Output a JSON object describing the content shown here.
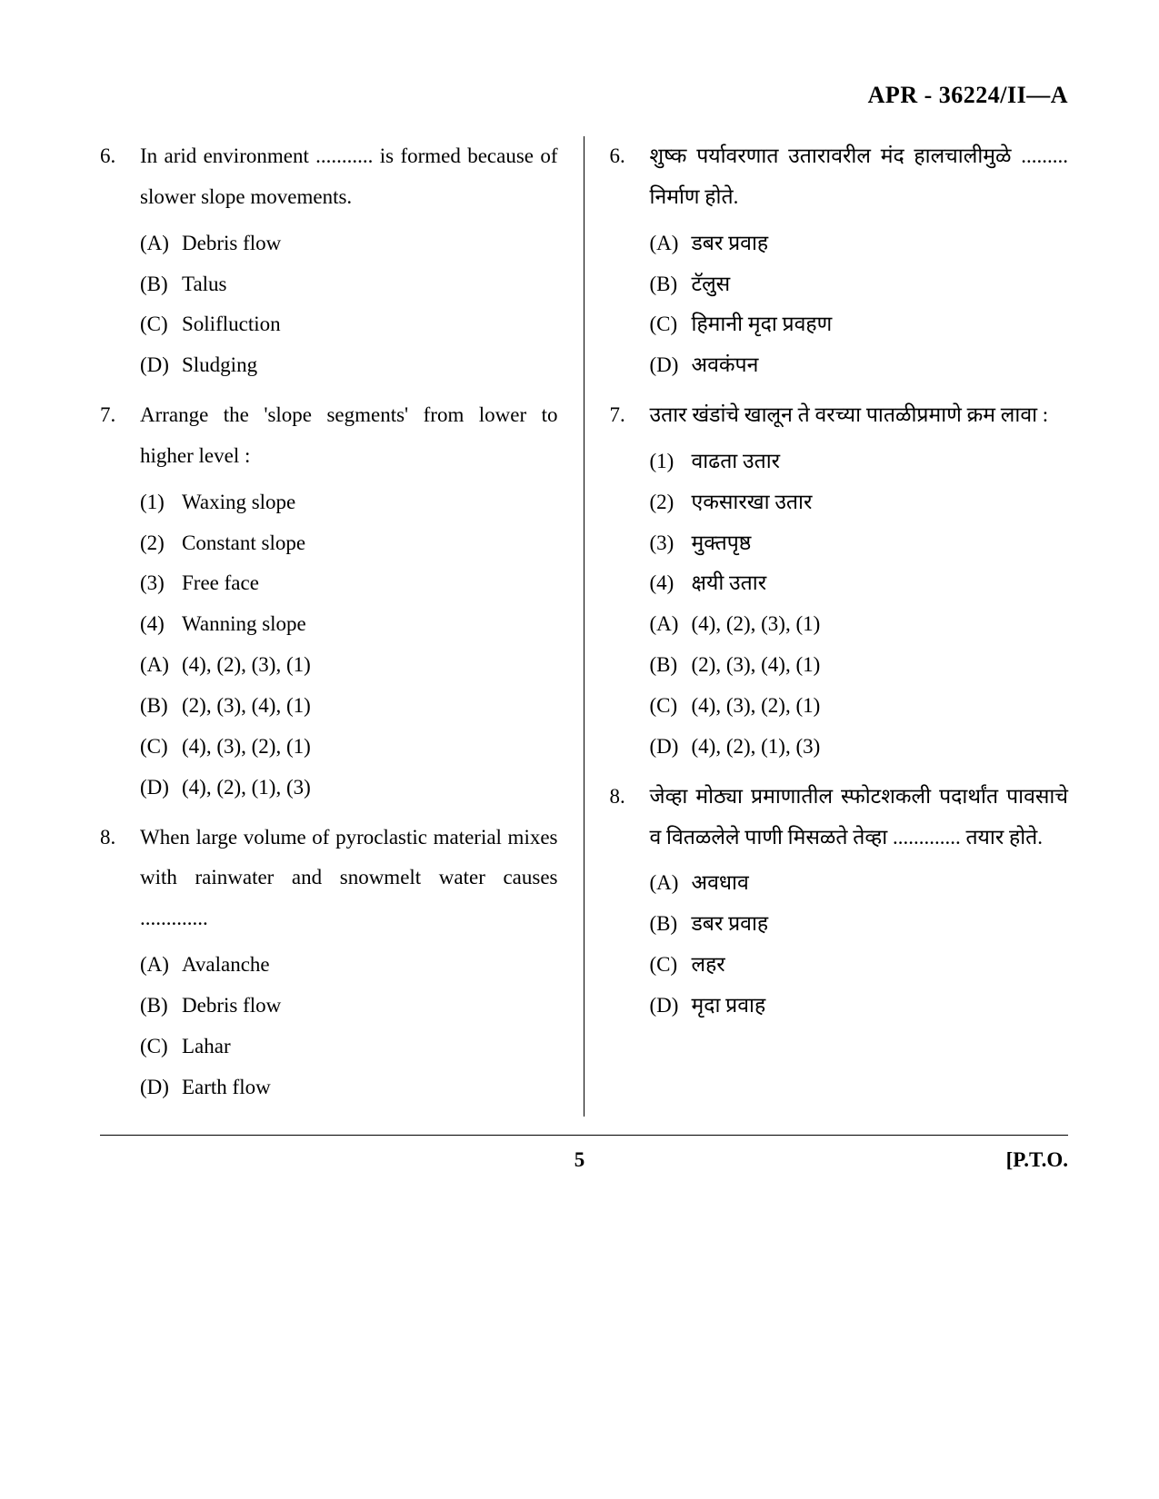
{
  "header": "APR - 36224/II—A",
  "footer": {
    "page": "5",
    "pto": "[P.T.O."
  },
  "left": {
    "lang": "en",
    "questions": [
      {
        "num": "6.",
        "text": "In arid environment ........... is formed because of slower slope movements.",
        "options": [
          {
            "label": "(A)",
            "text": "Debris flow"
          },
          {
            "label": "(B)",
            "text": "Talus"
          },
          {
            "label": "(C)",
            "text": "Solifluction"
          },
          {
            "label": "(D)",
            "text": "Sludging"
          }
        ]
      },
      {
        "num": "7.",
        "text": "Arrange the 'slope segments' from lower to higher level :",
        "items": [
          {
            "label": "(1)",
            "text": "Waxing slope"
          },
          {
            "label": "(2)",
            "text": "Constant slope"
          },
          {
            "label": "(3)",
            "text": "Free face"
          },
          {
            "label": "(4)",
            "text": "Wanning slope"
          }
        ],
        "options": [
          {
            "label": "(A)",
            "text": "(4), (2), (3), (1)"
          },
          {
            "label": "(B)",
            "text": "(2), (3), (4), (1)"
          },
          {
            "label": "(C)",
            "text": "(4), (3), (2), (1)"
          },
          {
            "label": "(D)",
            "text": "(4), (2), (1), (3)"
          }
        ]
      },
      {
        "num": "8.",
        "text": "When large volume of pyroclastic material mixes with rainwater and snowmelt water causes .............",
        "options": [
          {
            "label": "(A)",
            "text": "Avalanche"
          },
          {
            "label": "(B)",
            "text": "Debris flow"
          },
          {
            "label": "(C)",
            "text": "Lahar"
          },
          {
            "label": "(D)",
            "text": "Earth flow"
          }
        ]
      }
    ]
  },
  "right": {
    "lang": "mr",
    "questions": [
      {
        "num": "6.",
        "text": "शुष्क पर्यावरणात उतारावरील मंद हालचालीमुळे ......... निर्माण होते.",
        "options": [
          {
            "label": "(A)",
            "text": "डबर प्रवाह"
          },
          {
            "label": "(B)",
            "text": "टॅलुस"
          },
          {
            "label": "(C)",
            "text": "हिमानी मृदा प्रवहण"
          },
          {
            "label": "(D)",
            "text": "अवकंपन"
          }
        ]
      },
      {
        "num": "7.",
        "text": "उतार खंडांचे खालून ते वरच्या पातळीप्रमाणे क्रम लावा :",
        "items": [
          {
            "label": "(1)",
            "text": "वाढता उतार"
          },
          {
            "label": "(2)",
            "text": "एकसारखा उतार"
          },
          {
            "label": "(3)",
            "text": "मुक्तपृष्ठ"
          },
          {
            "label": "(4)",
            "text": "क्षयी उतार"
          }
        ],
        "options": [
          {
            "label": "(A)",
            "text": "(4), (2), (3), (1)"
          },
          {
            "label": "(B)",
            "text": "(2), (3), (4), (1)"
          },
          {
            "label": "(C)",
            "text": "(4), (3), (2), (1)"
          },
          {
            "label": "(D)",
            "text": "(4), (2), (1), (3)"
          }
        ]
      },
      {
        "num": "8.",
        "text": "जेव्हा मोठ्या प्रमाणातील स्फोटशकली पदार्थांत पावसाचे व वितळलेले पाणी मिसळते तेव्हा ............. तयार होते.",
        "options": [
          {
            "label": "(A)",
            "text": "अवधाव"
          },
          {
            "label": "(B)",
            "text": "डबर प्रवाह"
          },
          {
            "label": "(C)",
            "text": "लहर"
          },
          {
            "label": "(D)",
            "text": "मृदा प्रवाह"
          }
        ]
      }
    ]
  }
}
